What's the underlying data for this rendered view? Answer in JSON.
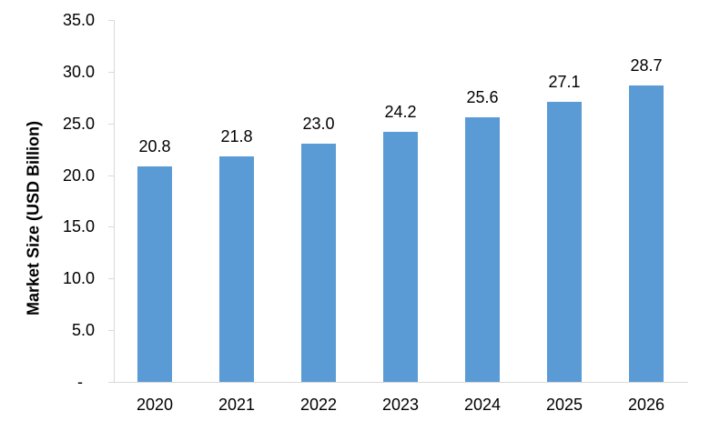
{
  "chart_data": {
    "type": "bar",
    "categories": [
      "2020",
      "2021",
      "2022",
      "2023",
      "2024",
      "2025",
      "2026"
    ],
    "values": [
      20.8,
      21.8,
      23.0,
      24.2,
      25.6,
      27.1,
      28.7
    ],
    "data_labels": [
      "20.8",
      "21.8",
      "23.0",
      "24.2",
      "25.6",
      "27.1",
      "28.7"
    ],
    "title": "",
    "xlabel": "",
    "ylabel": "Market Size (USD Billion)",
    "ylim": [
      0,
      35
    ],
    "ytick_step": 5,
    "ytick_labels_bottom_to_top": [
      "-",
      "5.0",
      "10.0",
      "15.0",
      "20.0",
      "25.0",
      "30.0",
      "35.0"
    ],
    "grid": false,
    "legend": "none",
    "bar_color": "#5B9BD5",
    "axis_color": "#D9D9D9",
    "text_color": "#000000"
  }
}
